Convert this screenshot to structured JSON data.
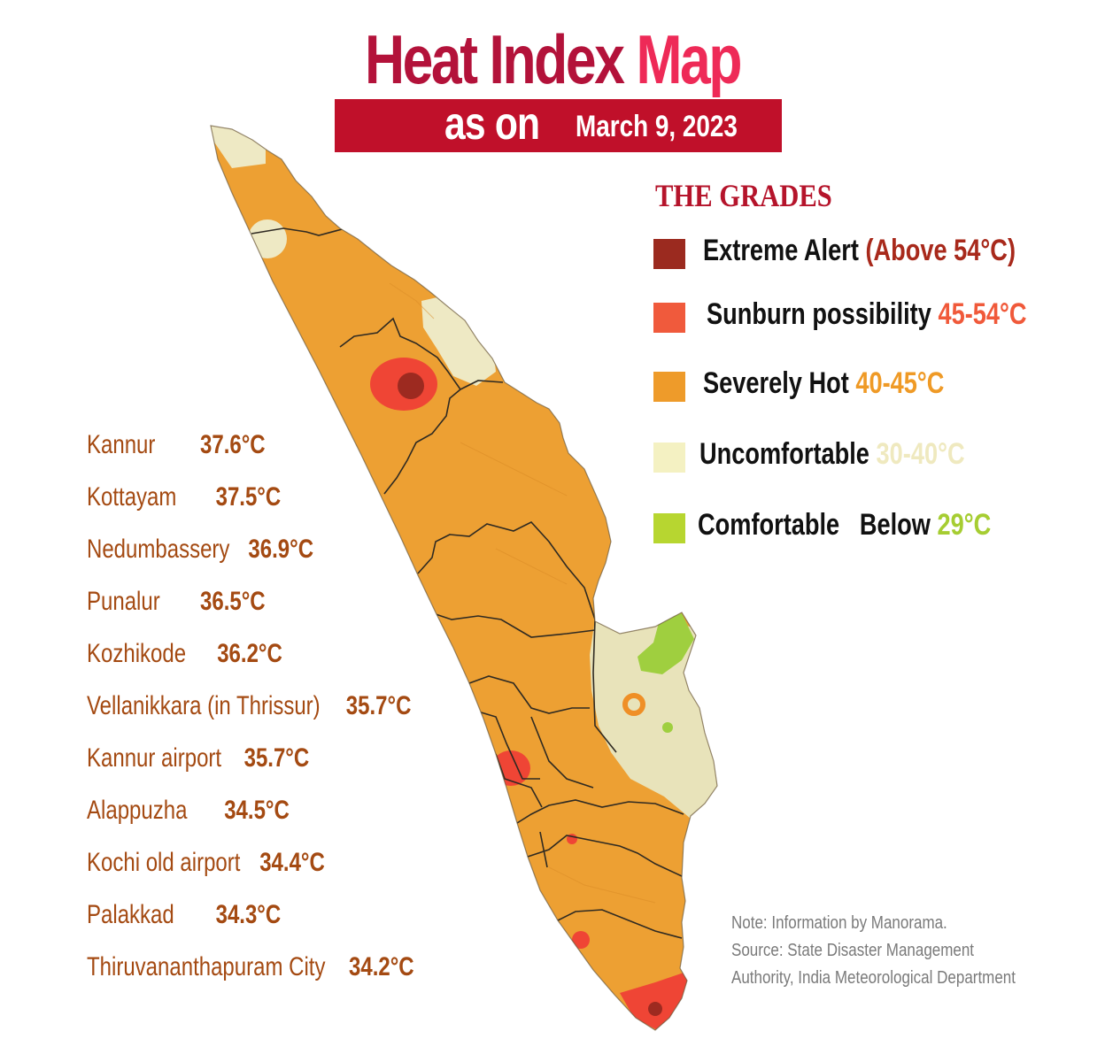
{
  "title": {
    "part1": "Heat Index",
    "part2": "Map"
  },
  "subtitle": {
    "as_on": "as on",
    "date": "March 9, 2023"
  },
  "grades": {
    "heading": "THE GRADES",
    "items": [
      {
        "label": "Extreme Alert",
        "range": "(Above 54°C)",
        "color": "#9b2a1f",
        "range_color": "#a8291b"
      },
      {
        "label": "Sunburn possibility",
        "range": "45-54°C",
        "color": "#f05a3c",
        "range_color": "#f0593a"
      },
      {
        "label": "Severely Hot",
        "range": "40-45°C",
        "color": "#ee9b2a",
        "range_color": "#ef9a26"
      },
      {
        "label": "Uncomfortable",
        "range": "30-40°C",
        "color": "#f4f1c2",
        "range_color": "#efe9bf"
      },
      {
        "label": "Comfortable   Below",
        "range": "29°C",
        "color": "#b7d630",
        "range_color": "#a6cd32"
      }
    ]
  },
  "readings": [
    {
      "place": "Kannur",
      "value": "37.6°C"
    },
    {
      "place": "Kottayam",
      "value": "37.5°C"
    },
    {
      "place": "Nedumbassery",
      "value": "36.9°C"
    },
    {
      "place": "Punalur",
      "value": "36.5°C"
    },
    {
      "place": "Kozhikode",
      "value": "36.2°C"
    },
    {
      "place": "Vellanikkara (in Thrissur)",
      "value": "35.7°C"
    },
    {
      "place": "Kannur airport",
      "value": "35.7°C"
    },
    {
      "place": "Alappuzha",
      "value": "34.5°C"
    },
    {
      "place": "Kochi old airport",
      "value": "34.4°C"
    },
    {
      "place": "Palakkad",
      "value": "34.3°C"
    },
    {
      "place": "Thiruvananthapuram City",
      "value": "34.2°C"
    }
  ],
  "note": {
    "line1": "Note: Information by Manorama.",
    "line2": "Source: State Disaster Management",
    "line3": "Authority, India Meteorological Department"
  },
  "map_colors": {
    "base": "#eda033",
    "border": "#2f2a22"
  }
}
